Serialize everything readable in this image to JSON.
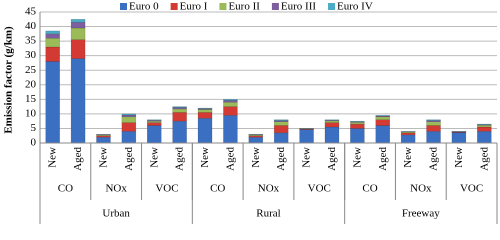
{
  "chart_data": {
    "type": "stacked-bar",
    "y_label": "Emission factor (g/km)",
    "categories": [
      "New",
      "Aged",
      "New",
      "Aged",
      "New",
      "Aged",
      "New",
      "Aged",
      "New",
      "Aged",
      "New",
      "Aged",
      "New",
      "Aged",
      "New",
      "Aged",
      "New",
      "Aged"
    ],
    "subgroups": [
      "CO",
      "NOx",
      "VOC",
      "CO",
      "NOx",
      "VOC",
      "CO",
      "NOx",
      "VOC"
    ],
    "groups": [
      "Urban",
      "Rural",
      "Freeway"
    ],
    "series": [
      {
        "name": "Euro 0",
        "color": "#3b6fc2",
        "values": [
          28,
          29,
          2,
          4,
          6,
          7.5,
          8.5,
          9.5,
          2,
          3.5,
          4.6,
          5.5,
          5,
          6,
          2.8,
          4,
          3.6,
          4
        ]
      },
      {
        "name": "Euro I",
        "color": "#d23a33",
        "values": [
          5,
          6.5,
          0.5,
          3,
          1,
          3,
          2,
          3,
          0.5,
          2.5,
          0.2,
          1.5,
          1.5,
          2,
          0.7,
          2,
          0.2,
          1.5
        ]
      },
      {
        "name": "Euro II",
        "color": "#9bbb59",
        "values": [
          3,
          4,
          0.3,
          2,
          0.5,
          1.2,
          1,
          1.5,
          0.3,
          1.3,
          0.1,
          0.6,
          0.6,
          1,
          0.3,
          1.3,
          0.1,
          0.6
        ]
      },
      {
        "name": "Euro III",
        "color": "#7d5fa0",
        "values": [
          1.5,
          2,
          0.1,
          0.6,
          0.3,
          0.5,
          0.3,
          0.6,
          0.1,
          0.4,
          0.05,
          0.2,
          0.2,
          0.3,
          0.1,
          0.4,
          0.05,
          0.2
        ]
      },
      {
        "name": "Euro IV",
        "color": "#4bacc6",
        "values": [
          1,
          1,
          0.1,
          0.4,
          0.2,
          0.3,
          0.2,
          0.4,
          0.1,
          0.3,
          0.05,
          0.2,
          0.2,
          0.2,
          0.1,
          0.3,
          0.05,
          0.2
        ]
      }
    ],
    "ylim": [
      0,
      45
    ],
    "yticks": [
      0,
      5,
      10,
      15,
      20,
      25,
      30,
      35,
      40,
      45
    ],
    "grid": true
  }
}
